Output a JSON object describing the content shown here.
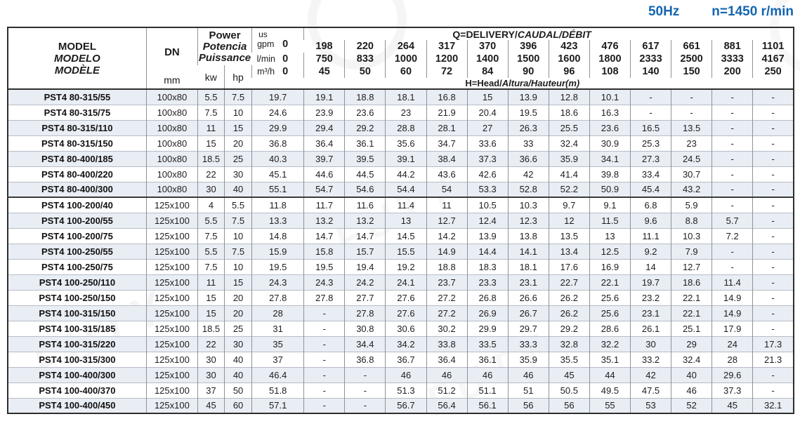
{
  "page": {
    "frequency": "50Hz",
    "speed": "n=1450 r/min",
    "accent_color": "#1565b0",
    "stripe_color": "#e9edf4",
    "watermark_text": "FUTY"
  },
  "table": {
    "header": {
      "model_en": "MODEL",
      "model_es": "MODELO",
      "model_fr": "MODÈLE",
      "dn_label": "DN",
      "dn_unit": "mm",
      "power_en": "Power",
      "power_es": "Potencia",
      "power_fr": "Puissance",
      "kw_label": "kw",
      "hp_label": "hp",
      "q_title_normal": "Q=DELIVERY/",
      "q_title_italic": "CAUDAL/DÉBIT",
      "h_title_normal": "H=Head/",
      "h_title_italic": "Altura/Hauteur(m)",
      "unit_gpm_line1": "us",
      "unit_gpm_line2": "gpm",
      "unit_lmin": "l/min",
      "unit_m3h": "m³/h",
      "flow_gpm": [
        "0",
        "198",
        "220",
        "264",
        "317",
        "370",
        "396",
        "423",
        "476",
        "617",
        "661",
        "881",
        "1101"
      ],
      "flow_lmin": [
        "0",
        "750",
        "833",
        "1000",
        "1200",
        "1400",
        "1500",
        "1600",
        "1800",
        "2333",
        "2500",
        "3333",
        "4167"
      ],
      "flow_m3h": [
        "0",
        "45",
        "50",
        "60",
        "72",
        "84",
        "90",
        "96",
        "108",
        "140",
        "150",
        "200",
        "250"
      ]
    },
    "rows": [
      {
        "model": "PST4 80-315/55",
        "dn": "100x80",
        "kw": "5.5",
        "hp": "7.5",
        "head": [
          "19.7",
          "19.1",
          "18.8",
          "18.1",
          "16.8",
          "15",
          "13.9",
          "12.8",
          "10.1",
          "-",
          "-",
          "-",
          "-"
        ]
      },
      {
        "model": "PST4 80-315/75",
        "dn": "100x80",
        "kw": "7.5",
        "hp": "10",
        "head": [
          "24.6",
          "23.9",
          "23.6",
          "23",
          "21.9",
          "20.4",
          "19.5",
          "18.6",
          "16.3",
          "-",
          "-",
          "-",
          "-"
        ]
      },
      {
        "model": "PST4 80-315/110",
        "dn": "100x80",
        "kw": "11",
        "hp": "15",
        "head": [
          "29.9",
          "29.4",
          "29.2",
          "28.8",
          "28.1",
          "27",
          "26.3",
          "25.5",
          "23.6",
          "16.5",
          "13.5",
          "-",
          "-"
        ]
      },
      {
        "model": "PST4 80-315/150",
        "dn": "100x80",
        "kw": "15",
        "hp": "20",
        "head": [
          "36.8",
          "36.4",
          "36.1",
          "35.6",
          "34.7",
          "33.6",
          "33",
          "32.4",
          "30.9",
          "25.3",
          "23",
          "-",
          "-"
        ]
      },
      {
        "model": "PST4 80-400/185",
        "dn": "100x80",
        "kw": "18.5",
        "hp": "25",
        "head": [
          "40.3",
          "39.7",
          "39.5",
          "39.1",
          "38.4",
          "37.3",
          "36.6",
          "35.9",
          "34.1",
          "27.3",
          "24.5",
          "-",
          "-"
        ]
      },
      {
        "model": "PST4 80-400/220",
        "dn": "100x80",
        "kw": "22",
        "hp": "30",
        "head": [
          "45.1",
          "44.6",
          "44.5",
          "44.2",
          "43.6",
          "42.6",
          "42",
          "41.4",
          "39.8",
          "33.4",
          "30.7",
          "-",
          "-"
        ]
      },
      {
        "model": "PST4 80-400/300",
        "dn": "100x80",
        "kw": "30",
        "hp": "40",
        "head": [
          "55.1",
          "54.7",
          "54.6",
          "54.4",
          "54",
          "53.3",
          "52.8",
          "52.2",
          "50.9",
          "45.4",
          "43.2",
          "-",
          "-"
        ]
      },
      {
        "model": "PST4 100-200/40",
        "dn": "125x100",
        "kw": "4",
        "hp": "5.5",
        "head": [
          "11.8",
          "11.7",
          "11.6",
          "11.4",
          "11",
          "10.5",
          "10.3",
          "9.7",
          "9.1",
          "6.8",
          "5.9",
          "-",
          "-"
        ]
      },
      {
        "model": "PST4 100-200/55",
        "dn": "125x100",
        "kw": "5.5",
        "hp": "7.5",
        "head": [
          "13.3",
          "13.2",
          "13.2",
          "13",
          "12.7",
          "12.4",
          "12.3",
          "12",
          "11.5",
          "9.6",
          "8.8",
          "5.7",
          "-"
        ]
      },
      {
        "model": "PST4 100-200/75",
        "dn": "125x100",
        "kw": "7.5",
        "hp": "10",
        "head": [
          "14.8",
          "14.7",
          "14.7",
          "14.5",
          "14.2",
          "13.9",
          "13.8",
          "13.5",
          "13",
          "11.1",
          "10.3",
          "7.2",
          "-"
        ]
      },
      {
        "model": "PST4 100-250/55",
        "dn": "125x100",
        "kw": "5.5",
        "hp": "7.5",
        "head": [
          "15.9",
          "15.8",
          "15.7",
          "15.5",
          "14.9",
          "14.4",
          "14.1",
          "13.4",
          "12.5",
          "9.2",
          "7.9",
          "-",
          "-"
        ]
      },
      {
        "model": "PST4 100-250/75",
        "dn": "125x100",
        "kw": "7.5",
        "hp": "10",
        "head": [
          "19.5",
          "19.5",
          "19.4",
          "19.2",
          "18.8",
          "18.3",
          "18.1",
          "17.6",
          "16.9",
          "14",
          "12.7",
          "-",
          "-"
        ]
      },
      {
        "model": "PST4 100-250/110",
        "dn": "125x100",
        "kw": "11",
        "hp": "15",
        "head": [
          "24.3",
          "24.3",
          "24.2",
          "24.1",
          "23.7",
          "23.3",
          "23.1",
          "22.7",
          "22.1",
          "19.7",
          "18.6",
          "11.4",
          "-"
        ]
      },
      {
        "model": "PST4 100-250/150",
        "dn": "125x100",
        "kw": "15",
        "hp": "20",
        "head": [
          "27.8",
          "27.8",
          "27.7",
          "27.6",
          "27.2",
          "26.8",
          "26.6",
          "26.2",
          "25.6",
          "23.2",
          "22.1",
          "14.9",
          "-"
        ]
      },
      {
        "model": "PST4 100-315/150",
        "dn": "125x100",
        "kw": "15",
        "hp": "20",
        "head": [
          "28",
          "-",
          "27.8",
          "27.6",
          "27.2",
          "26.9",
          "26.7",
          "26.2",
          "25.6",
          "23.1",
          "22.1",
          "14.9",
          "-"
        ]
      },
      {
        "model": "PST4 100-315/185",
        "dn": "125x100",
        "kw": "18.5",
        "hp": "25",
        "head": [
          "31",
          "-",
          "30.8",
          "30.6",
          "30.2",
          "29.9",
          "29.7",
          "29.2",
          "28.6",
          "26.1",
          "25.1",
          "17.9",
          "-"
        ]
      },
      {
        "model": "PST4 100-315/220",
        "dn": "125x100",
        "kw": "22",
        "hp": "30",
        "head": [
          "35",
          "-",
          "34.4",
          "34.2",
          "33.8",
          "33.5",
          "33.3",
          "32.8",
          "32.2",
          "30",
          "29",
          "24",
          "17.3"
        ]
      },
      {
        "model": "PST4 100-315/300",
        "dn": "125x100",
        "kw": "30",
        "hp": "40",
        "head": [
          "37",
          "-",
          "36.8",
          "36.7",
          "36.4",
          "36.1",
          "35.9",
          "35.5",
          "35.1",
          "33.2",
          "32.4",
          "28",
          "21.3"
        ]
      },
      {
        "model": "PST4 100-400/300",
        "dn": "125x100",
        "kw": "30",
        "hp": "40",
        "head": [
          "46.4",
          "-",
          "-",
          "46",
          "46",
          "46",
          "46",
          "45",
          "44",
          "42",
          "40",
          "29.6",
          "-"
        ]
      },
      {
        "model": "PST4 100-400/370",
        "dn": "125x100",
        "kw": "37",
        "hp": "50",
        "head": [
          "51.8",
          "-",
          "-",
          "51.3",
          "51.2",
          "51.1",
          "51",
          "50.5",
          "49.5",
          "47.5",
          "46",
          "37.3",
          "-"
        ]
      },
      {
        "model": "PST4 100-400/450",
        "dn": "125x100",
        "kw": "45",
        "hp": "60",
        "head": [
          "57.1",
          "-",
          "-",
          "56.7",
          "56.4",
          "56.1",
          "56",
          "56",
          "55",
          "53",
          "52",
          "45",
          "32.1"
        ]
      }
    ]
  }
}
